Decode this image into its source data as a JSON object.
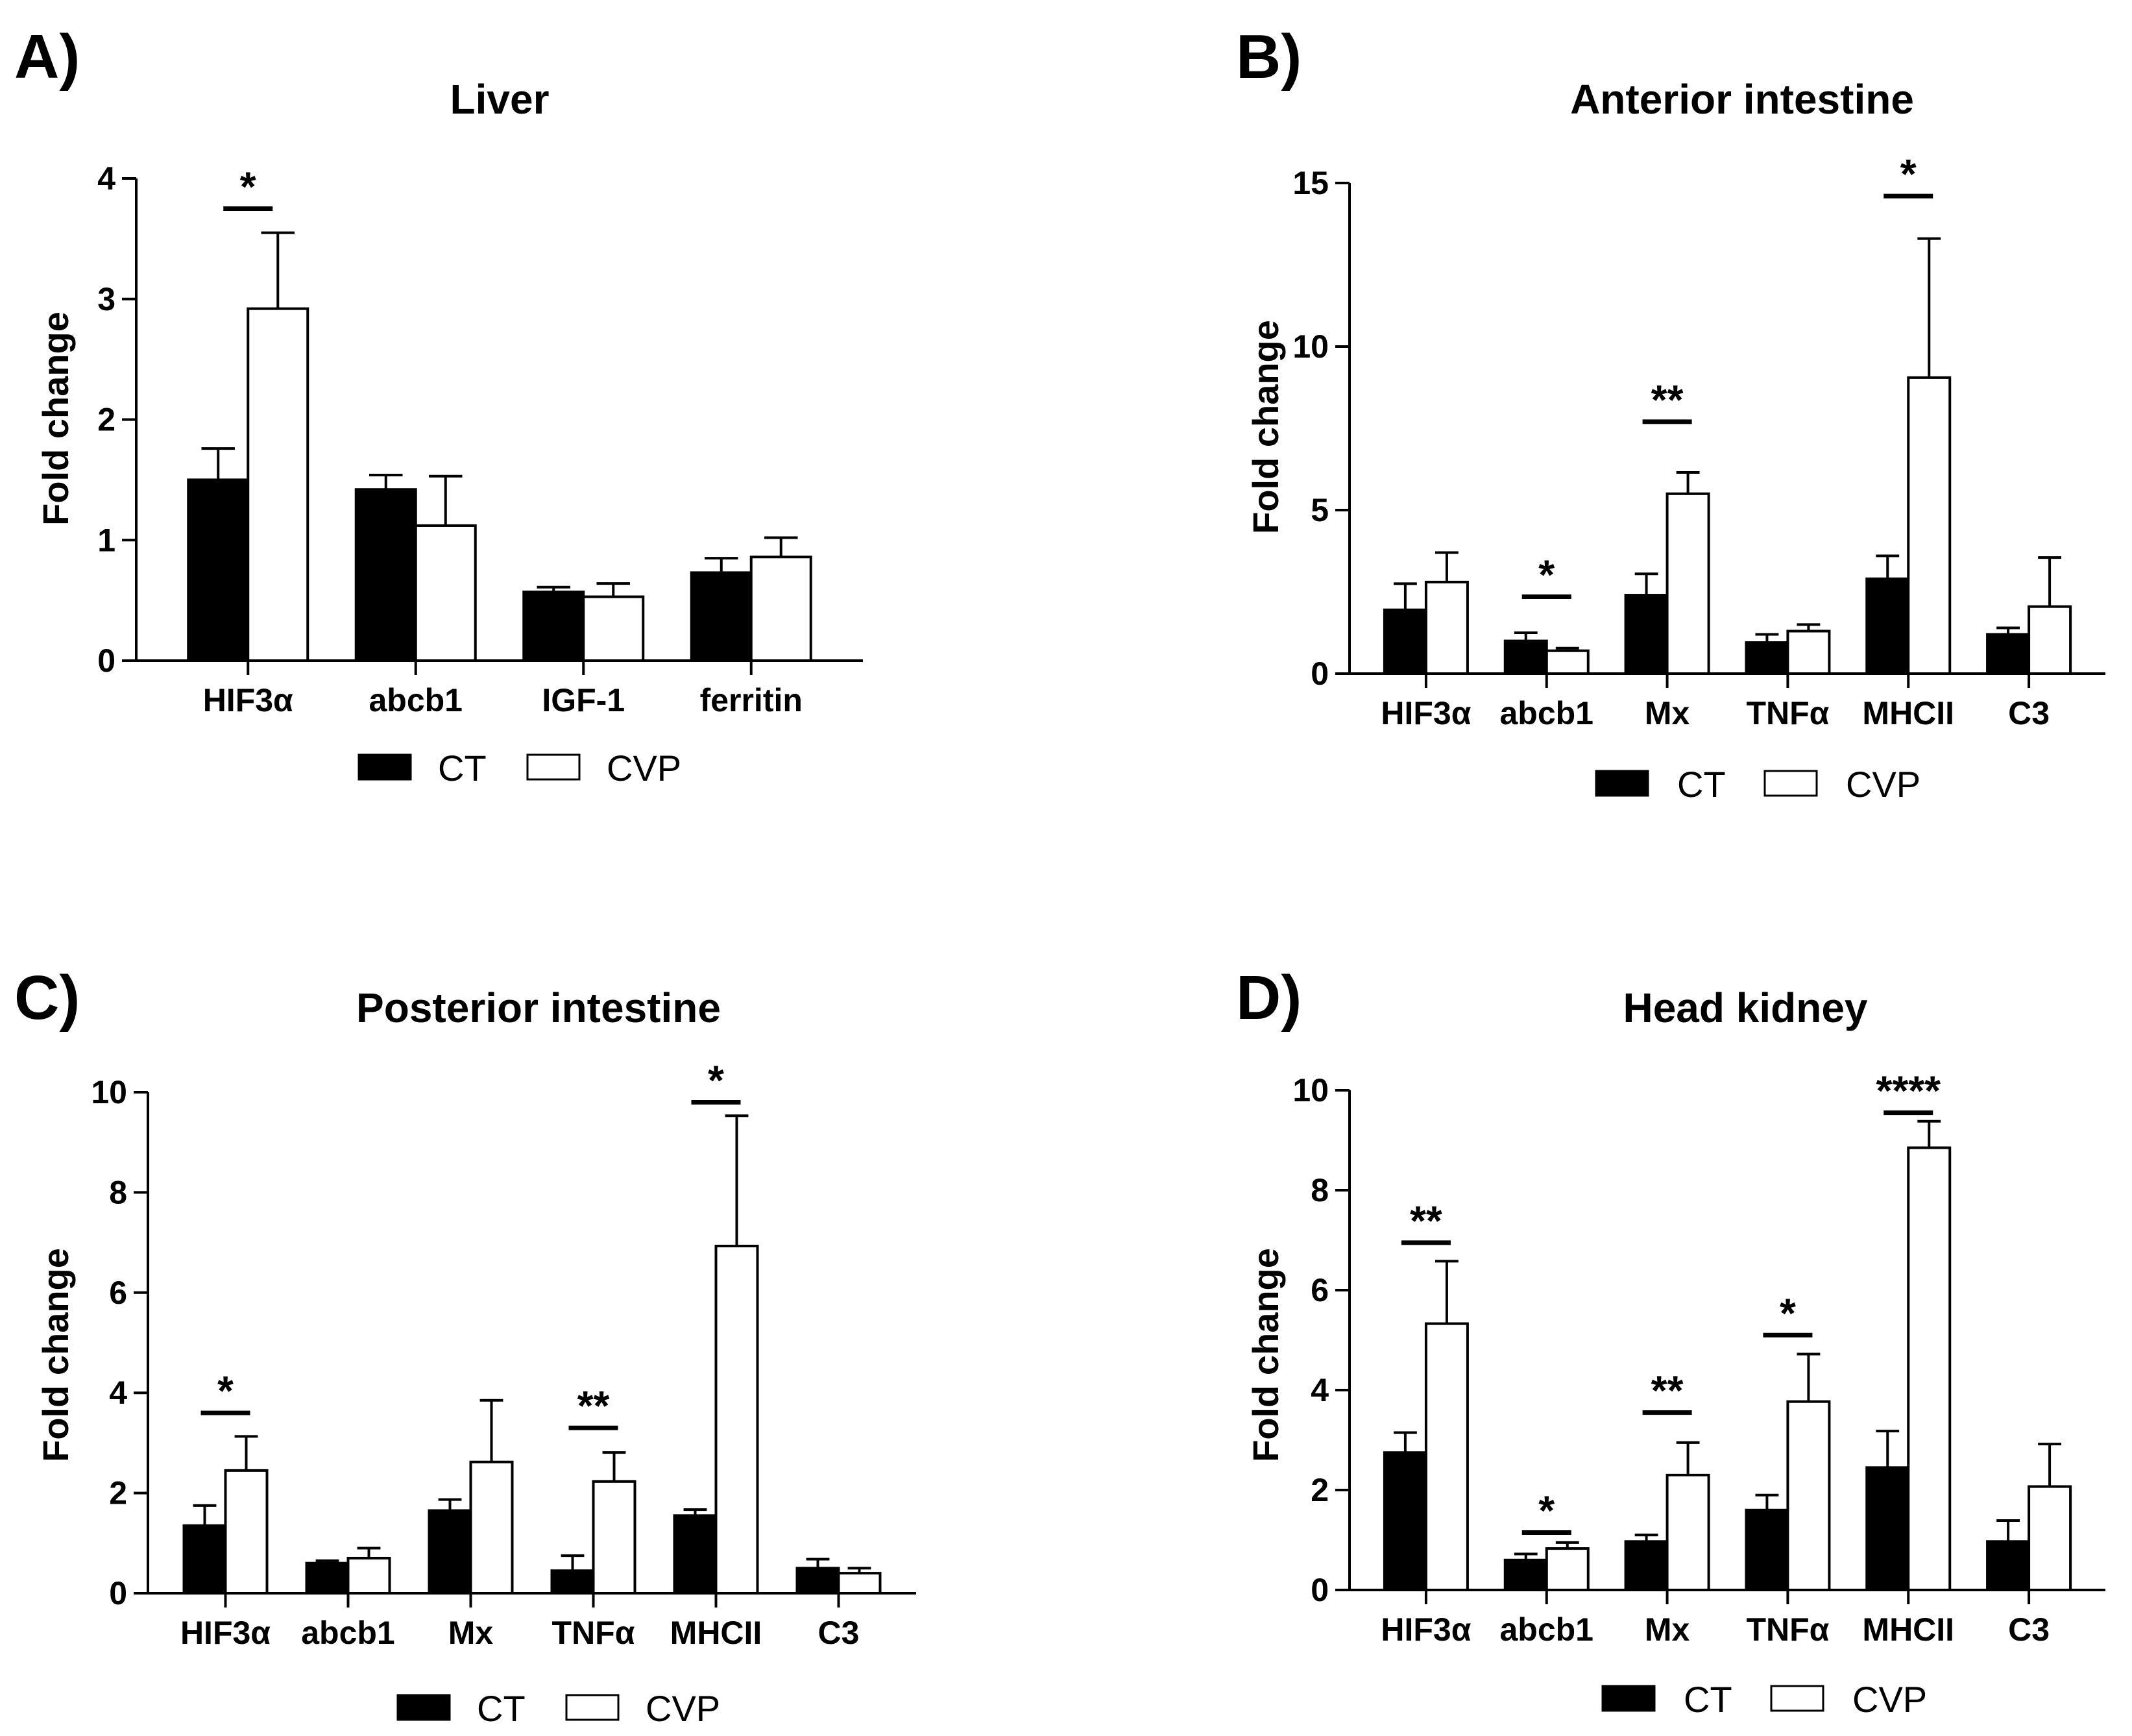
{
  "colors": {
    "ct_fill": "#000000",
    "cvp_fill": "#ffffff",
    "stroke": "#000000"
  },
  "legend": {
    "ct": "CT",
    "cvp": "CVP"
  },
  "chart_data": [
    {
      "type": "bar",
      "panel": "A)",
      "title": "Liver",
      "ylabel": "Fold change",
      "xlabel": "",
      "ylim": [
        0,
        4
      ],
      "yticks": [
        0,
        1,
        2,
        3,
        4
      ],
      "ytick_labels": [
        "0",
        "1",
        "2",
        "3",
        "4"
      ],
      "categories": [
        "HIF3α",
        "abcb1",
        "IGF-1",
        "ferritin"
      ],
      "series": [
        {
          "name": "CT",
          "values": [
            1.5,
            1.42,
            0.57,
            0.73
          ],
          "errors": [
            0.26,
            0.12,
            0.04,
            0.12
          ]
        },
        {
          "name": "CVP",
          "values": [
            2.92,
            1.12,
            0.53,
            0.86
          ],
          "errors": [
            0.63,
            0.41,
            0.11,
            0.16
          ]
        }
      ],
      "significance": [
        {
          "category": "HIF3α",
          "label": "*",
          "bar_y": 3.75
        }
      ]
    },
    {
      "type": "bar",
      "panel": "B)",
      "title": "Anterior intestine",
      "ylabel": "Fold change",
      "xlabel": "",
      "ylim": [
        0,
        15
      ],
      "yticks": [
        0,
        5,
        10,
        15
      ],
      "ytick_labels": [
        "0",
        "5",
        "10",
        "15"
      ],
      "categories": [
        "HIF3α",
        "abcb1",
        "Mx",
        "TNFα",
        "MHCII",
        "C3"
      ],
      "series": [
        {
          "name": "CT",
          "values": [
            1.95,
            1.0,
            2.4,
            0.95,
            2.9,
            1.2
          ],
          "errors": [
            0.8,
            0.25,
            0.65,
            0.25,
            0.7,
            0.2
          ]
        },
        {
          "name": "CVP",
          "values": [
            2.8,
            0.7,
            5.5,
            1.3,
            9.05,
            2.05
          ],
          "errors": [
            0.9,
            0.08,
            0.65,
            0.2,
            4.25,
            1.5
          ]
        }
      ],
      "significance": [
        {
          "category": "abcb1",
          "label": "*",
          "bar_y": 2.35
        },
        {
          "category": "Mx",
          "label": "**",
          "bar_y": 7.7
        },
        {
          "category": "MHCII",
          "label": "*",
          "bar_y": 14.6
        }
      ]
    },
    {
      "type": "bar",
      "panel": "C)",
      "title": "Posterior intestine",
      "ylabel": "Fold change",
      "xlabel": "",
      "ylim": [
        0,
        10
      ],
      "yticks": [
        0,
        2,
        4,
        6,
        8,
        10
      ],
      "ytick_labels": [
        "0",
        "2",
        "4",
        "6",
        "8",
        "10"
      ],
      "categories": [
        "HIF3α",
        "abcb1",
        "Mx",
        "TNFα",
        "MHCII",
        "C3"
      ],
      "series": [
        {
          "name": "CT",
          "values": [
            1.35,
            0.6,
            1.65,
            0.45,
            1.55,
            0.5
          ],
          "errors": [
            0.4,
            0.05,
            0.22,
            0.3,
            0.12,
            0.18
          ]
        },
        {
          "name": "CVP",
          "values": [
            2.45,
            0.7,
            2.62,
            2.23,
            6.93,
            0.4
          ],
          "errors": [
            0.68,
            0.2,
            1.23,
            0.58,
            2.6,
            0.1
          ]
        }
      ],
      "significance": [
        {
          "category": "HIF3α",
          "label": "*",
          "bar_y": 3.6
        },
        {
          "category": "TNFα",
          "label": "**",
          "bar_y": 3.3
        },
        {
          "category": "MHCII",
          "label": "*",
          "bar_y": 9.8
        }
      ]
    },
    {
      "type": "bar",
      "panel": "D)",
      "title": "Head kidney",
      "ylabel": "Fold change",
      "xlabel": "",
      "ylim": [
        0,
        10
      ],
      "yticks": [
        0,
        2,
        4,
        6,
        8,
        10
      ],
      "ytick_labels": [
        "0",
        "2",
        "4",
        "6",
        "8",
        "10"
      ],
      "categories": [
        "HIF3α",
        "abcb1",
        "Mx",
        "TNFα",
        "MHCII",
        "C3"
      ],
      "series": [
        {
          "name": "CT",
          "values": [
            2.75,
            0.6,
            0.97,
            1.6,
            2.45,
            0.97
          ],
          "errors": [
            0.4,
            0.12,
            0.13,
            0.3,
            0.73,
            0.42
          ]
        },
        {
          "name": "CVP",
          "values": [
            5.33,
            0.83,
            2.3,
            3.77,
            8.85,
            2.07
          ],
          "errors": [
            1.25,
            0.12,
            0.65,
            0.95,
            0.53,
            0.85
          ]
        }
      ],
      "significance": [
        {
          "category": "HIF3α",
          "label": "**",
          "bar_y": 6.95
        },
        {
          "category": "abcb1",
          "label": "*",
          "bar_y": 1.15
        },
        {
          "category": "Mx",
          "label": "**",
          "bar_y": 3.55
        },
        {
          "category": "TNFα",
          "label": "*",
          "bar_y": 5.1
        },
        {
          "category": "MHCII",
          "label": "****",
          "bar_y": 9.55
        }
      ]
    }
  ]
}
